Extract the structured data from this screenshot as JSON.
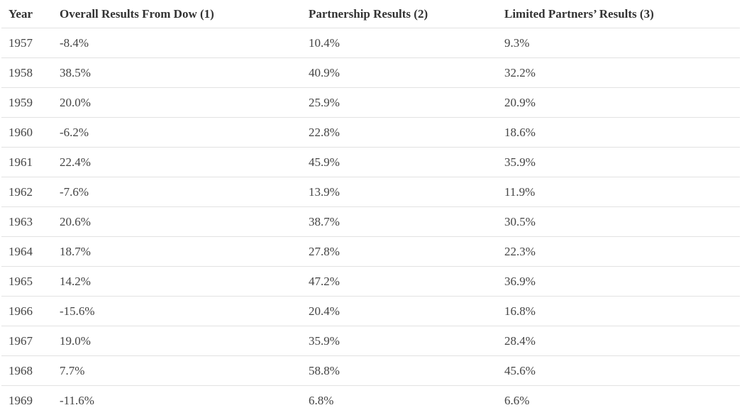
{
  "table": {
    "headers": [
      "Year",
      "Overall Results From Dow (1)",
      "Partnership Results (2)",
      "Limited Partners’ Results (3)"
    ],
    "rows": [
      [
        "1957",
        "-8.4%",
        "10.4%",
        "9.3%"
      ],
      [
        "1958",
        "38.5%",
        "40.9%",
        "32.2%"
      ],
      [
        "1959",
        "20.0%",
        "25.9%",
        "20.9%"
      ],
      [
        "1960",
        "-6.2%",
        "22.8%",
        "18.6%"
      ],
      [
        "1961",
        "22.4%",
        "45.9%",
        "35.9%"
      ],
      [
        "1962",
        "-7.6%",
        "13.9%",
        "11.9%"
      ],
      [
        "1963",
        "20.6%",
        "38.7%",
        "30.5%"
      ],
      [
        "1964",
        "18.7%",
        "27.8%",
        "22.3%"
      ],
      [
        "1965",
        "14.2%",
        "47.2%",
        "36.9%"
      ],
      [
        "1966",
        "-15.6%",
        "20.4%",
        "16.8%"
      ],
      [
        "1967",
        "19.0%",
        "35.9%",
        "28.4%"
      ],
      [
        "1968",
        "7.7%",
        "58.8%",
        "45.6%"
      ],
      [
        "1969",
        "-11.6%",
        "6.8%",
        "6.6%"
      ]
    ]
  }
}
